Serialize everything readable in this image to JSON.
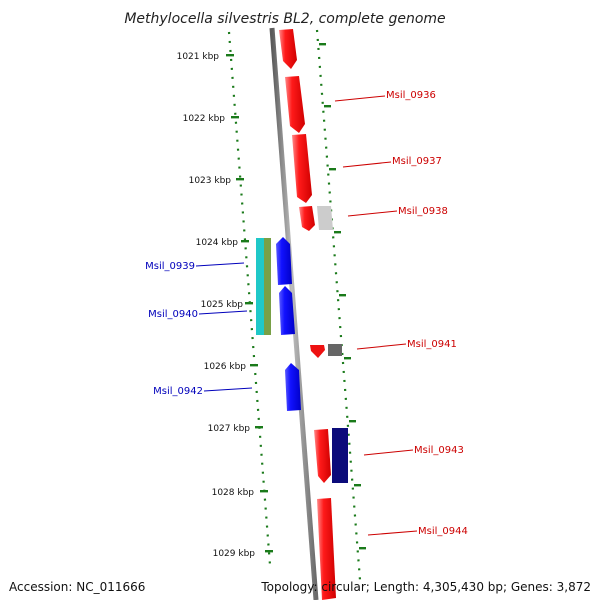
{
  "title": "Methylocella silvestris BL2, complete genome",
  "footer": {
    "accession": "Accession: NC_011666",
    "topology": "Topology: circular; Length: 4,305,430 bp; Genes: 3,872"
  },
  "colors": {
    "forward": "#ee1111",
    "reverse": "#1111ee",
    "backbone": "#8c8c8c",
    "ruler": "#1a7a1a",
    "forward_label": "#cc0000",
    "reverse_label": "#0000bb"
  },
  "ruler_ticks": [
    "1021 kbp",
    "1022 kbp",
    "1023 kbp",
    "1024 kbp",
    "1025 kbp",
    "1026 kbp",
    "1027 kbp",
    "1028 kbp",
    "1029 kbp"
  ],
  "genes": [
    {
      "label": "",
      "strand": "forward",
      "start": 1020.45,
      "end": 1021.25,
      "color": "#ee1111"
    },
    {
      "label": "Msil_0936",
      "strand": "forward",
      "start": 1021.3,
      "end": 1022.2,
      "color": "#ee1111"
    },
    {
      "label": "Msil_0937",
      "strand": "forward",
      "start": 1022.25,
      "end": 1023.35,
      "color": "#ee1111"
    },
    {
      "label": "",
      "strand": "forward",
      "start": 1023.4,
      "end": 1023.8,
      "color": "#ee1111"
    },
    {
      "label": "Msil_0938",
      "strand": "forward",
      "start": 1023.4,
      "end": 1023.8,
      "color": "#cccccc"
    },
    {
      "label": "Msil_0939",
      "strand": "reverse",
      "start": 1023.9,
      "end": 1025.5,
      "color": "#1fc8c8"
    },
    {
      "label": "",
      "strand": "reverse",
      "start": 1023.9,
      "end": 1025.5,
      "color": "#78a046"
    },
    {
      "label": "",
      "strand": "reverse",
      "start": 1023.9,
      "end": 1024.65,
      "color": "#1111ee"
    },
    {
      "label": "Msil_0940",
      "strand": "reverse",
      "start": 1024.7,
      "end": 1025.5,
      "color": "#1111ee"
    },
    {
      "label": "Msil_0941",
      "strand": "forward",
      "start": 1025.65,
      "end": 1025.85,
      "color": "#ee1111"
    },
    {
      "label": "",
      "strand": "forward",
      "start": 1025.65,
      "end": 1025.85,
      "color": "#666666"
    },
    {
      "label": "Msil_0942",
      "strand": "reverse",
      "start": 1026.0,
      "end": 1026.75,
      "color": "#1111ee"
    },
    {
      "label": "Msil_0943",
      "strand": "forward",
      "start": 1027.05,
      "end": 1027.9,
      "color": "#ee1111"
    },
    {
      "label": "",
      "strand": "forward",
      "start": 1027.05,
      "end": 1027.9,
      "color": "#0b0b7a"
    },
    {
      "label": "Msil_0944",
      "strand": "forward",
      "start": 1028.1,
      "end": 1029.6,
      "color": "#ee1111"
    }
  ]
}
